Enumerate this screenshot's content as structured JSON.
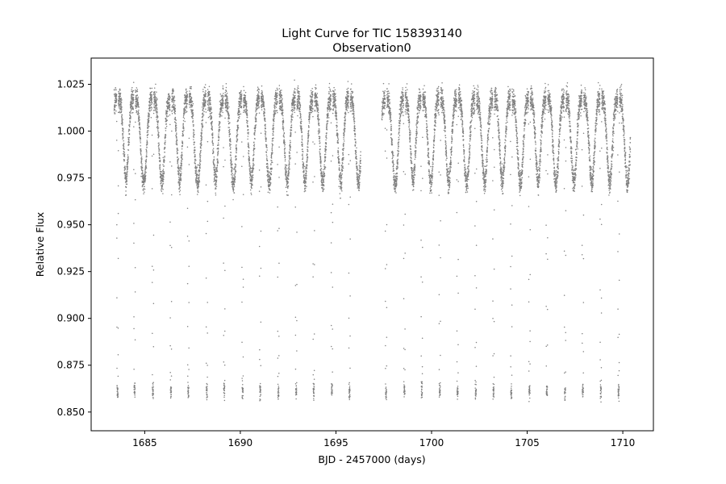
{
  "chart_data": {
    "type": "scatter",
    "title": "Light Curve for TIC 158393140",
    "subtitle": "Observation0",
    "xlabel": "BJD - 2457000 (days)",
    "ylabel": "Relative Flux",
    "xlim": [
      1682.2,
      1711.6
    ],
    "ylim": [
      0.84,
      1.039
    ],
    "x_ticks": [
      1685,
      1690,
      1695,
      1700,
      1705,
      1710
    ],
    "y_ticks": [
      0.85,
      0.875,
      0.9,
      0.925,
      0.95,
      0.975,
      1.0,
      1.025
    ],
    "x_tick_labels": [
      "1685",
      "1690",
      "1695",
      "1700",
      "1705",
      "1710"
    ],
    "y_tick_labels": [
      "0.850",
      "0.875",
      "0.900",
      "0.925",
      "0.950",
      "0.975",
      "1.000",
      "1.025"
    ],
    "grid": false,
    "marker_color": "#7f7f7f",
    "series": [
      {
        "segments": [
          {
            "x_start": 1683.4,
            "x_end": 1696.3
          },
          {
            "x_start": 1697.4,
            "x_end": 1710.4
          }
        ],
        "out_of_eclipse_flux": [
          0.975,
          1.027
        ],
        "eclipse_depth_flux": 0.861,
        "eclipse_epochs": [
          1683.58,
          1684.47,
          1685.43,
          1686.37,
          1687.28,
          1688.25,
          1689.16,
          1690.12,
          1691.04,
          1691.99,
          1692.92,
          1693.84,
          1694.79,
          1695.71,
          1697.62,
          1698.58,
          1699.49,
          1700.43,
          1701.36,
          1702.31,
          1703.24,
          1704.17,
          1705.12,
          1706.03,
          1706.98,
          1707.91,
          1708.85,
          1709.78
        ]
      }
    ]
  }
}
